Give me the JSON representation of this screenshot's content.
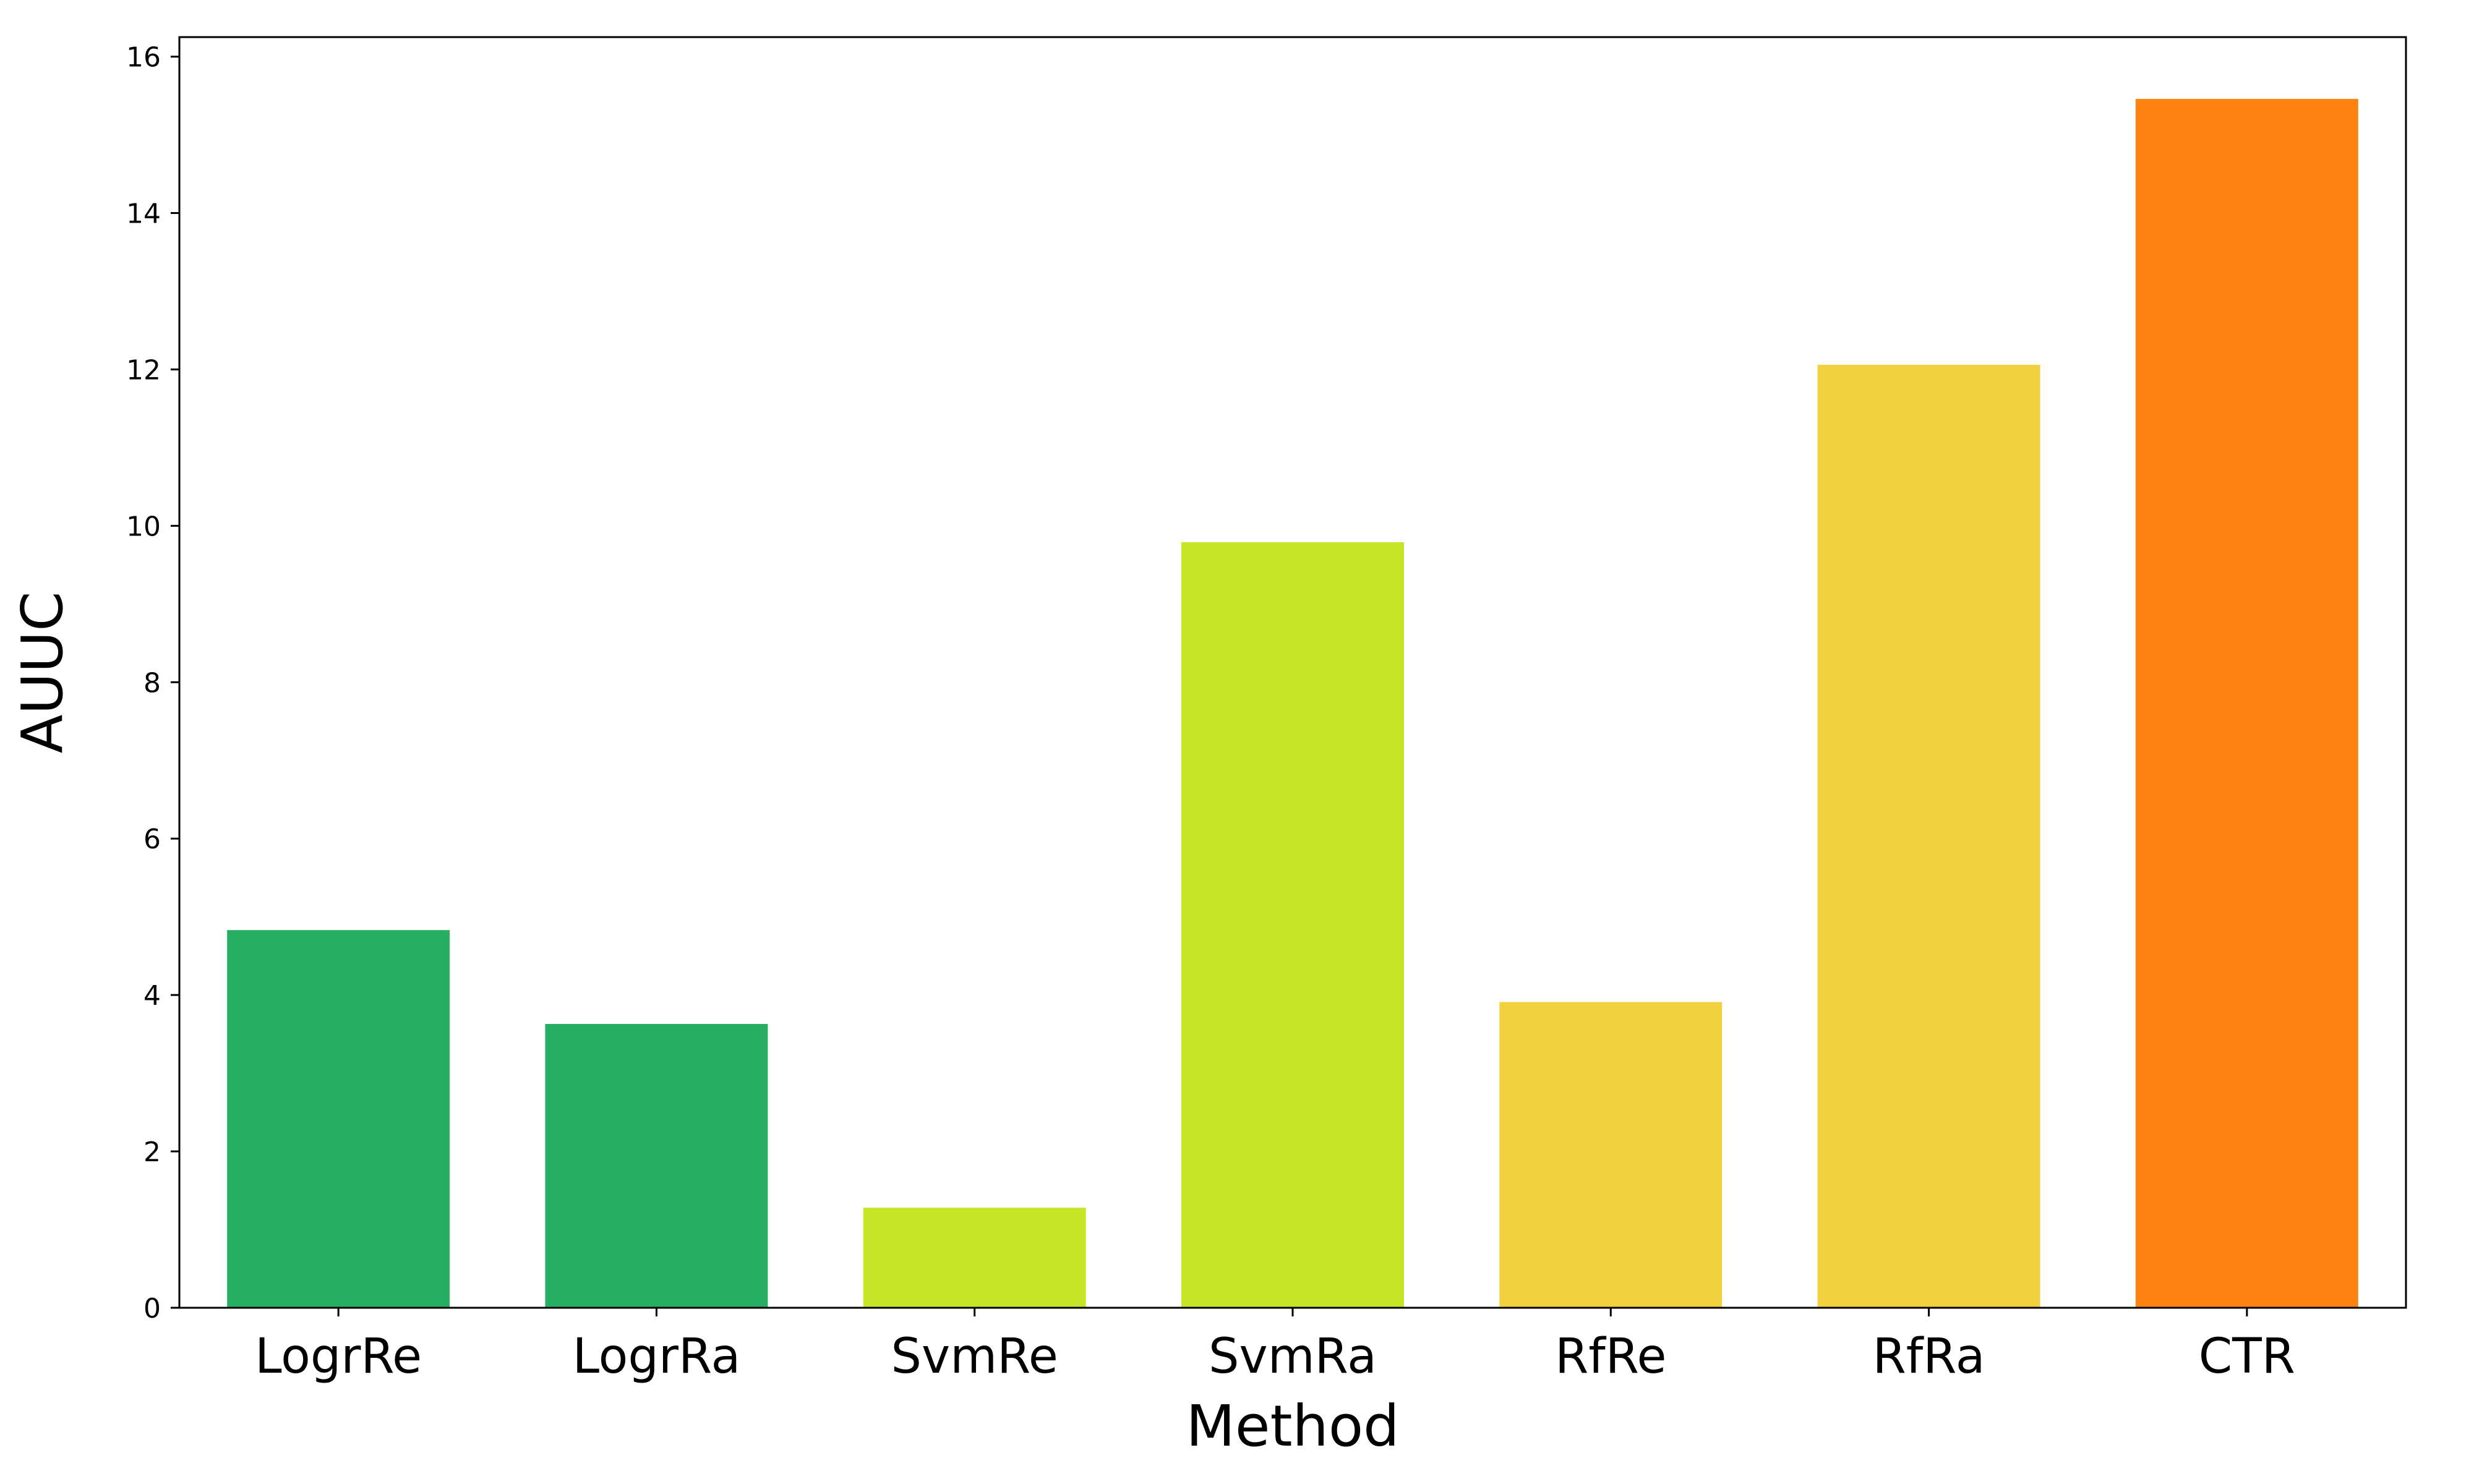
{
  "chart_data": {
    "type": "bar",
    "categories": [
      "LogrRe",
      "LogrRa",
      "SvmRe",
      "SvmRa",
      "RfRe",
      "RfRa",
      "CTR"
    ],
    "values": [
      4.83,
      3.63,
      1.28,
      9.79,
      3.91,
      12.06,
      15.46
    ],
    "colors": [
      "#28ae62",
      "#28ae62",
      "#c7e527",
      "#c7e527",
      "#f3d03e",
      "#f3d03e",
      "#fe8211"
    ],
    "title": "",
    "xlabel": "Method",
    "ylabel": "AUUC",
    "ylim": [
      0,
      16.25
    ],
    "yticks": [
      0,
      2,
      4,
      6,
      8,
      10,
      12,
      14,
      16
    ],
    "grid": false,
    "legend": "none"
  }
}
